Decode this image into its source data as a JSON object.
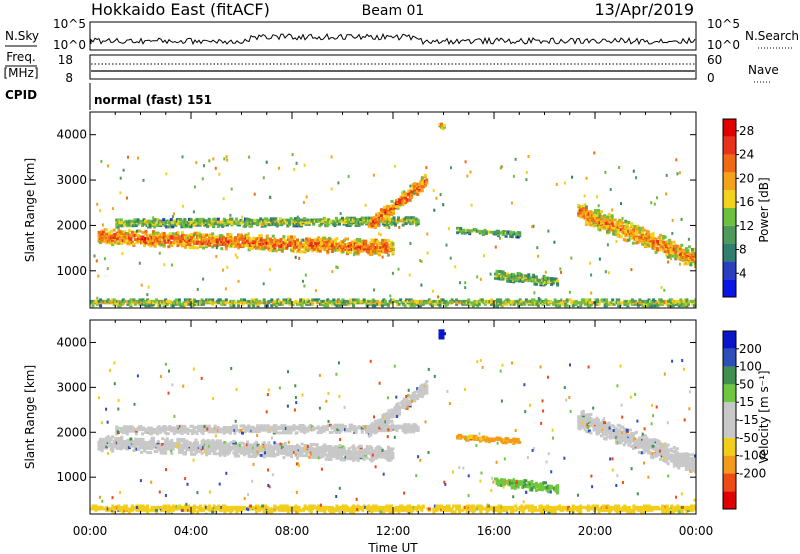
{
  "header": {
    "title": "Hokkaido East (fitACF)",
    "beam": "Beam 01",
    "date": "13/Apr/2019"
  },
  "left_labels": {
    "nsky": "N.Sky",
    "freq_top": "Freq.",
    "freq_unit": "[MHz]",
    "cpid": "CPID"
  },
  "right_labels": {
    "nsearch": "N.Search",
    "nave": "Nave"
  },
  "noise_axis": {
    "left_ticks": [
      "10^5",
      "10^0"
    ],
    "right_ticks": [
      "10^5",
      "10^0"
    ]
  },
  "freq_axis": {
    "left_ticks": [
      "18",
      "8"
    ],
    "right_ticks": [
      "60",
      "0"
    ]
  },
  "cpid_text": "normal (fast) 151",
  "colors": {
    "power": [
      "#0a16e6",
      "#2a3fbf",
      "#2e7f6e",
      "#4e9a5a",
      "#6fbf3f",
      "#f2d21a",
      "#f4a21a",
      "#f06a14",
      "#e8321a",
      "#e00000"
    ],
    "velocity": [
      "#e10000",
      "#ee4a14",
      "#f39a1a",
      "#f2cd1a",
      "#c8c8c8",
      "#c8c8c8",
      "#6fc73f",
      "#3f8f4e",
      "#2d4fb8",
      "#0a14c8"
    ]
  },
  "chart_data": [
    {
      "type": "heatmap",
      "title": "Power",
      "xlabel": "",
      "ylabel": "Slant Range [km]",
      "x_tick_labels": [
        "00:00",
        "04:00",
        "08:00",
        "12:00",
        "16:00",
        "20:00",
        "00:00"
      ],
      "y_tick_labels": [
        "1000",
        "2000",
        "3000",
        "4000"
      ],
      "ylim": [
        180,
        4500
      ],
      "xlim_hours": [
        0,
        24
      ],
      "colorbar": {
        "label": "Power [dB]",
        "ticks": [
          "4",
          "8",
          "12",
          "16",
          "20",
          "24",
          "28"
        ],
        "range": [
          0,
          30
        ]
      },
      "regions": [
        {
          "name": "main arc",
          "t_start": 0.3,
          "t_end": 12.0,
          "r_start": 1750,
          "r_end": 1500,
          "thickness": 320,
          "value": 22
        },
        {
          "name": "upper arc",
          "t_start": 1.0,
          "t_end": 13.0,
          "r_start": 2050,
          "r_end": 2100,
          "thickness": 180,
          "value": 14
        },
        {
          "name": "rising band",
          "t_start": 11.0,
          "t_end": 13.3,
          "r_start": 2000,
          "r_end": 3000,
          "thickness": 300,
          "value": 22
        },
        {
          "name": "late arc",
          "t_start": 19.3,
          "t_end": 24.0,
          "r_start": 2300,
          "r_end": 1250,
          "thickness": 420,
          "value": 20
        },
        {
          "name": "mid echo",
          "t_start": 14.5,
          "t_end": 17.0,
          "r_start": 1900,
          "r_end": 1800,
          "thickness": 120,
          "value": 12
        },
        {
          "name": "near-range patch",
          "t_start": 16.0,
          "t_end": 18.5,
          "r_start": 900,
          "r_end": 750,
          "thickness": 200,
          "value": 14
        },
        {
          "name": "ground scatter",
          "t_start": 0.0,
          "t_end": 24.0,
          "r_start": 300,
          "r_end": 300,
          "thickness": 140,
          "value": 15
        },
        {
          "name": "high-range echo",
          "t_start": 13.8,
          "t_end": 14.0,
          "r_start": 4200,
          "r_end": 4200,
          "thickness": 200,
          "value": 18
        }
      ]
    },
    {
      "type": "heatmap",
      "title": "Velocity",
      "xlabel": "Time UT",
      "ylabel": "Slant Range [km]",
      "x_tick_labels": [
        "00:00",
        "04:00",
        "08:00",
        "12:00",
        "16:00",
        "20:00",
        "00:00"
      ],
      "y_tick_labels": [
        "1000",
        "2000",
        "3000",
        "4000"
      ],
      "ylim": [
        180,
        4500
      ],
      "xlim_hours": [
        0,
        24
      ],
      "colorbar": {
        "label": "Velocity [m s⁻¹]",
        "ticks": [
          "200",
          "100",
          "50",
          "15",
          "-15",
          "-50",
          "-100",
          "-200"
        ],
        "range": [
          -250,
          250
        ]
      },
      "regions": [
        {
          "name": "main arc",
          "t_start": 0.3,
          "t_end": 12.0,
          "r_start": 1750,
          "r_end": 1500,
          "thickness": 320,
          "value": 0
        },
        {
          "name": "upper arc",
          "t_start": 1.0,
          "t_end": 13.0,
          "r_start": 2050,
          "r_end": 2100,
          "thickness": 180,
          "value": 0
        },
        {
          "name": "rising band",
          "t_start": 11.0,
          "t_end": 13.3,
          "r_start": 2000,
          "r_end": 3000,
          "thickness": 300,
          "value": 0
        },
        {
          "name": "late arc",
          "t_start": 19.3,
          "t_end": 24.0,
          "r_start": 2300,
          "r_end": 1250,
          "thickness": 420,
          "value": 0
        },
        {
          "name": "mid echo",
          "t_start": 14.5,
          "t_end": 17.0,
          "r_start": 1900,
          "r_end": 1800,
          "thickness": 120,
          "value": -60
        },
        {
          "name": "near-range patch",
          "t_start": 16.0,
          "t_end": 18.5,
          "r_start": 900,
          "r_end": 750,
          "thickness": 200,
          "value": 40
        },
        {
          "name": "ground scatter",
          "t_start": 0.0,
          "t_end": 24.0,
          "r_start": 300,
          "r_end": 300,
          "thickness": 140,
          "value": -30
        },
        {
          "name": "high-range echo",
          "t_start": 13.8,
          "t_end": 14.0,
          "r_start": 4200,
          "r_end": 4200,
          "thickness": 200,
          "value": 220
        }
      ]
    }
  ]
}
